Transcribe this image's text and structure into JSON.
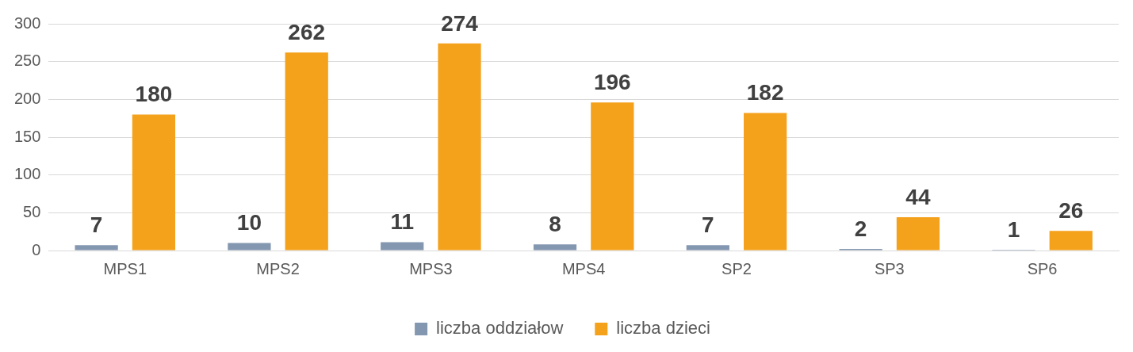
{
  "chart_data": {
    "type": "bar",
    "categories": [
      "MPS1",
      "MPS2",
      "MPS3",
      "MPS4",
      "SP2",
      "SP3",
      "SP6"
    ],
    "series": [
      {
        "name": "liczba oddziałow",
        "color": "#8497b0",
        "values": [
          7,
          10,
          11,
          8,
          7,
          2,
          1
        ]
      },
      {
        "name": "liczba dzieci",
        "color": "#f4a11c",
        "values": [
          180,
          262,
          274,
          196,
          182,
          44,
          26
        ]
      }
    ],
    "ylim": [
      0,
      300
    ],
    "yticks": [
      0,
      50,
      100,
      150,
      200,
      250,
      300
    ],
    "grid": "y",
    "legend": "bottom",
    "data_labels": true
  }
}
